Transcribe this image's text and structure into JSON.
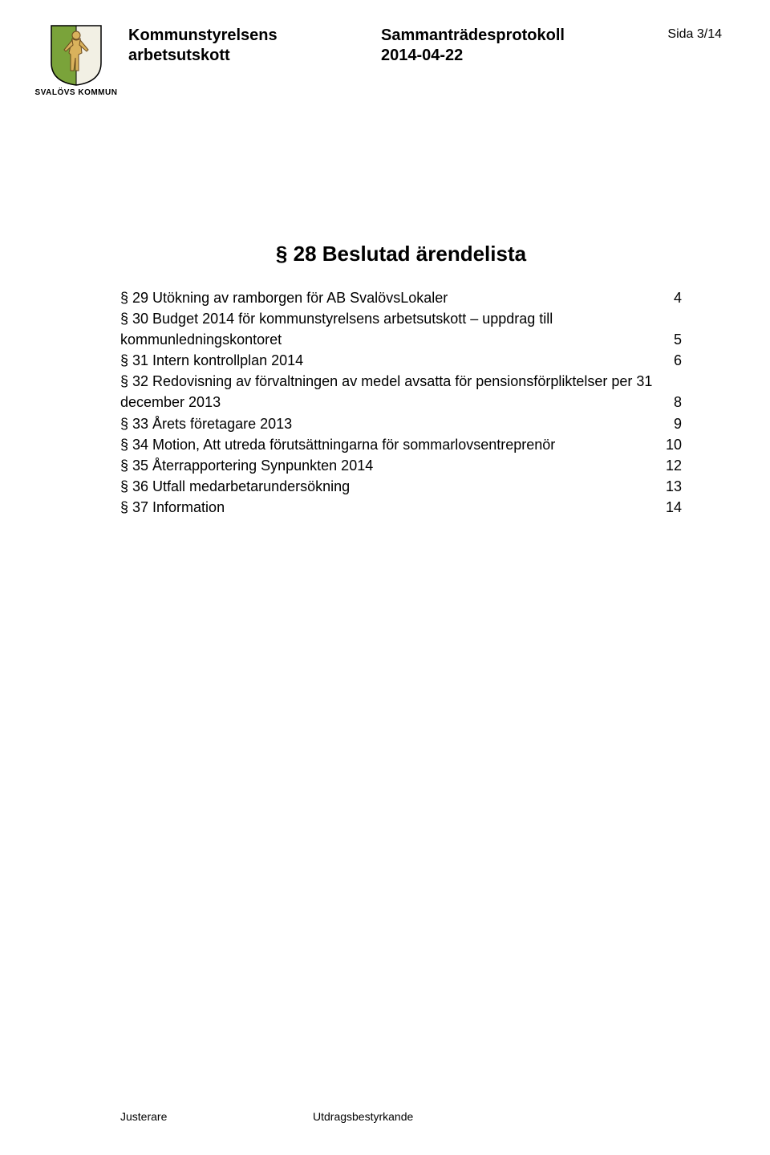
{
  "header": {
    "crest_caption": "SVALÖVS KOMMUN",
    "left_line1": "Kommunstyrelsens",
    "left_line2": "arbetsutskott",
    "center_line1": "Sammanträdesprotokoll",
    "center_line2": "2014-04-22",
    "right": "Sida 3/14",
    "colors": {
      "shield_left": "#7aa33a",
      "shield_right": "#f2f0e4",
      "shield_border": "#000000",
      "figure": "#d9b25c",
      "figure_outline": "#6b4a1f"
    }
  },
  "toc": {
    "title": "§ 28 Beslutad ärendelista",
    "items": [
      {
        "label": "§ 29 Utökning av ramborgen för AB SvalövsLokaler",
        "page": "4",
        "multiline": false
      },
      {
        "label_line1": "§ 30 Budget 2014 för kommunstyrelsens arbetsutskott – uppdrag till",
        "label_line2": "kommunledningskontoret",
        "page": "5",
        "multiline": true
      },
      {
        "label": "§ 31 Intern kontrollplan 2014",
        "page": "6",
        "multiline": false
      },
      {
        "label_line1": "§ 32 Redovisning av förvaltningen av medel avsatta för pensionsförpliktelser per 31",
        "label_line2": "december 2013",
        "page": "8",
        "multiline": true
      },
      {
        "label": "§ 33 Årets företagare 2013",
        "page": "9",
        "multiline": false
      },
      {
        "label": "§ 34 Motion, Att utreda förutsättningarna för sommarlovsentreprenör",
        "page": "10",
        "multiline": false
      },
      {
        "label": "§ 35 Återrapportering Synpunkten 2014",
        "page": "12",
        "multiline": false
      },
      {
        "label": "§ 36 Utfall medarbetarundersökning",
        "page": "13",
        "multiline": false
      },
      {
        "label": "§ 37 Information",
        "page": "14",
        "multiline": false
      }
    ]
  },
  "footer": {
    "col1": "Justerare",
    "col2": "Utdragsbestyrkande"
  }
}
